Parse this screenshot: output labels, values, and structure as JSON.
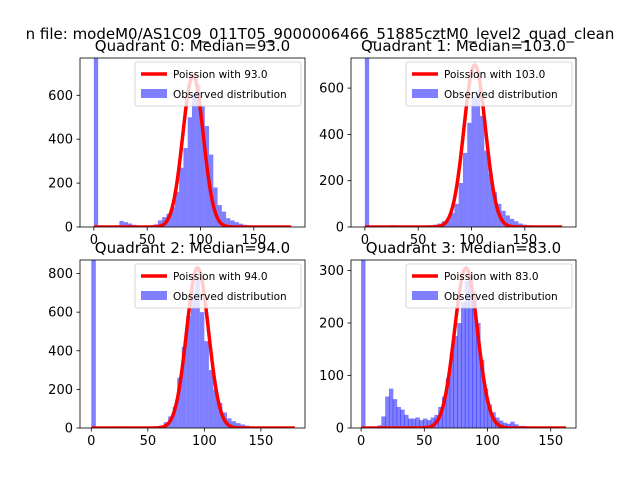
{
  "figure_title": "n file: modeM0/AS1C09_011T05_9000006466_51885cztM0_level2_quad_clean",
  "colors": {
    "poisson": "#ff0000",
    "observed": "#0000ff",
    "observed_alpha": 0.5
  },
  "chart_data": [
    {
      "type": "bar",
      "title": "Quadrant 0: Median=93.0",
      "legend": [
        "Poission with 93.0",
        "Observed distribution"
      ],
      "legend_position": "upper-right",
      "xlim": [
        -13,
        198
      ],
      "ylim": [
        0,
        770
      ],
      "xticks": [
        0,
        50,
        100,
        150
      ],
      "yticks": [
        0,
        200,
        400,
        600
      ],
      "bin_width": 4,
      "bins": [
        [
          0,
          770
        ],
        [
          20,
          8
        ],
        [
          24,
          28
        ],
        [
          28,
          22
        ],
        [
          32,
          16
        ],
        [
          36,
          10
        ],
        [
          40,
          6
        ],
        [
          44,
          5
        ],
        [
          48,
          6
        ],
        [
          52,
          8
        ],
        [
          56,
          12
        ],
        [
          60,
          30
        ],
        [
          64,
          45
        ],
        [
          68,
          60
        ],
        [
          72,
          90
        ],
        [
          76,
          160
        ],
        [
          80,
          270
        ],
        [
          84,
          360
        ],
        [
          88,
          500
        ],
        [
          92,
          610
        ],
        [
          96,
          650
        ],
        [
          100,
          550
        ],
        [
          104,
          460
        ],
        [
          108,
          330
        ],
        [
          112,
          180
        ],
        [
          116,
          100
        ],
        [
          120,
          70
        ],
        [
          124,
          40
        ],
        [
          128,
          30
        ],
        [
          132,
          22
        ],
        [
          136,
          15
        ],
        [
          140,
          10
        ],
        [
          144,
          8
        ],
        [
          148,
          5
        ],
        [
          152,
          4
        ],
        [
          156,
          3
        ],
        [
          160,
          2
        ],
        [
          164,
          2
        ]
      ],
      "poisson_mean": 93,
      "poisson_peak": 690,
      "poisson_x": [
        0,
        185
      ]
    },
    {
      "type": "bar",
      "title": "Quadrant 1: Median=103.0",
      "legend": [
        "Poission with 103.0",
        "Observed distribution"
      ],
      "legend_position": "upper-right",
      "xlim": [
        -13,
        198
      ],
      "ylim": [
        0,
        730
      ],
      "xticks": [
        0,
        50,
        100,
        150
      ],
      "yticks": [
        0,
        200,
        400,
        600
      ],
      "bin_width": 4,
      "bins": [
        [
          0,
          730
        ],
        [
          24,
          8
        ],
        [
          28,
          6
        ],
        [
          32,
          5
        ],
        [
          36,
          4
        ],
        [
          40,
          4
        ],
        [
          44,
          4
        ],
        [
          48,
          5
        ],
        [
          52,
          5
        ],
        [
          56,
          6
        ],
        [
          60,
          8
        ],
        [
          64,
          10
        ],
        [
          68,
          15
        ],
        [
          72,
          25
        ],
        [
          76,
          30
        ],
        [
          80,
          60
        ],
        [
          84,
          100
        ],
        [
          88,
          190
        ],
        [
          92,
          320
        ],
        [
          96,
          450
        ],
        [
          100,
          560
        ],
        [
          104,
          590
        ],
        [
          108,
          480
        ],
        [
          112,
          330
        ],
        [
          116,
          230
        ],
        [
          120,
          150
        ],
        [
          124,
          100
        ],
        [
          128,
          70
        ],
        [
          132,
          50
        ],
        [
          136,
          35
        ],
        [
          140,
          25
        ],
        [
          144,
          15
        ],
        [
          148,
          10
        ],
        [
          152,
          8
        ],
        [
          156,
          5
        ],
        [
          160,
          4
        ],
        [
          164,
          3
        ],
        [
          168,
          2
        ]
      ],
      "poisson_mean": 103,
      "poisson_peak": 700,
      "poisson_x": [
        0,
        185
      ]
    },
    {
      "type": "bar",
      "title": "Quadrant 2: Median=94.0",
      "legend": [
        "Poission with 94.0",
        "Observed distribution"
      ],
      "legend_position": "upper-right",
      "xlim": [
        -10,
        189
      ],
      "ylim": [
        0,
        870
      ],
      "xticks": [
        0,
        50,
        100,
        150
      ],
      "yticks": [
        0,
        200,
        400,
        600,
        800
      ],
      "bin_width": 4,
      "bins": [
        [
          0,
          870
        ],
        [
          24,
          8
        ],
        [
          28,
          5
        ],
        [
          32,
          4
        ],
        [
          36,
          4
        ],
        [
          40,
          4
        ],
        [
          44,
          4
        ],
        [
          48,
          5
        ],
        [
          52,
          6
        ],
        [
          56,
          8
        ],
        [
          60,
          12
        ],
        [
          64,
          30
        ],
        [
          68,
          60
        ],
        [
          72,
          110
        ],
        [
          76,
          260
        ],
        [
          80,
          420
        ],
        [
          84,
          580
        ],
        [
          88,
          700
        ],
        [
          92,
          780
        ],
        [
          96,
          600
        ],
        [
          100,
          450
        ],
        [
          104,
          300
        ],
        [
          108,
          200
        ],
        [
          112,
          130
        ],
        [
          116,
          80
        ],
        [
          120,
          50
        ],
        [
          124,
          35
        ],
        [
          128,
          25
        ],
        [
          132,
          18
        ],
        [
          136,
          12
        ],
        [
          140,
          8
        ],
        [
          144,
          6
        ],
        [
          148,
          4
        ],
        [
          152,
          3
        ],
        [
          156,
          2
        ],
        [
          160,
          2
        ]
      ],
      "poisson_mean": 94,
      "poisson_peak": 830,
      "poisson_x": [
        0,
        180
      ]
    },
    {
      "type": "bar",
      "title": "Quadrant 3: Median=83.0",
      "legend": [
        "Poission with 83.0",
        "Observed distribution"
      ],
      "legend_position": "upper-right",
      "xlim": [
        -8,
        170
      ],
      "ylim": [
        0,
        320
      ],
      "xticks": [
        0,
        50,
        100,
        150
      ],
      "yticks": [
        0,
        100,
        200,
        300
      ],
      "bin_width": 3.5,
      "bins": [
        [
          0,
          320
        ],
        [
          10,
          3
        ],
        [
          13,
          5
        ],
        [
          16,
          22
        ],
        [
          19,
          60
        ],
        [
          22,
          75
        ],
        [
          25,
          55
        ],
        [
          28,
          40
        ],
        [
          31,
          35
        ],
        [
          34,
          25
        ],
        [
          37,
          18
        ],
        [
          40,
          18
        ],
        [
          43,
          20
        ],
        [
          46,
          15
        ],
        [
          49,
          18
        ],
        [
          52,
          15
        ],
        [
          55,
          20
        ],
        [
          58,
          25
        ],
        [
          61,
          40
        ],
        [
          64,
          60
        ],
        [
          67,
          95
        ],
        [
          70,
          140
        ],
        [
          73,
          175
        ],
        [
          76,
          200
        ],
        [
          79,
          240
        ],
        [
          82,
          280
        ],
        [
          85,
          295
        ],
        [
          88,
          260
        ],
        [
          91,
          200
        ],
        [
          94,
          130
        ],
        [
          97,
          75
        ],
        [
          100,
          45
        ],
        [
          103,
          30
        ],
        [
          106,
          20
        ],
        [
          109,
          14
        ],
        [
          112,
          10
        ],
        [
          115,
          8
        ],
        [
          118,
          12
        ],
        [
          121,
          7
        ],
        [
          124,
          4
        ],
        [
          127,
          4
        ],
        [
          130,
          3
        ],
        [
          133,
          2
        ],
        [
          136,
          2
        ],
        [
          139,
          2
        ]
      ],
      "poisson_mean": 83,
      "poisson_peak": 305,
      "poisson_x": [
        0,
        162
      ]
    }
  ]
}
